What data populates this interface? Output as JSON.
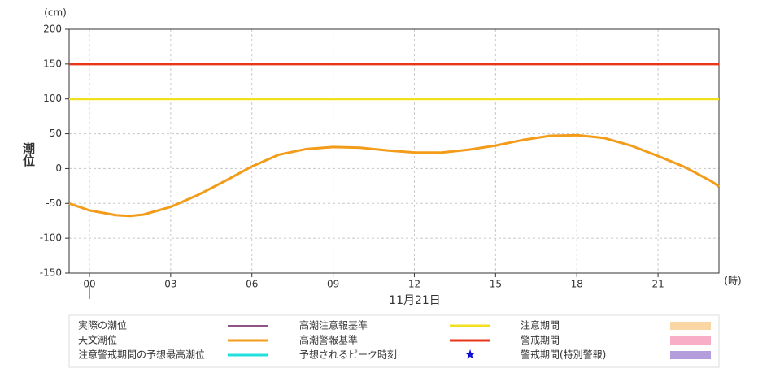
{
  "chart_data": {
    "type": "line",
    "y_unit": "(cm)",
    "ylabel": "潮位",
    "x_unit": "(時)",
    "date_label": "11月21日",
    "xlim": [
      -0.75,
      23.25
    ],
    "xticks": [
      {
        "value": 0,
        "label": "00"
      },
      {
        "value": 3,
        "label": "03"
      },
      {
        "value": 6,
        "label": "06"
      },
      {
        "value": 9,
        "label": "09"
      },
      {
        "value": 12,
        "label": "12"
      },
      {
        "value": 15,
        "label": "15"
      },
      {
        "value": 18,
        "label": "18"
      },
      {
        "value": 21,
        "label": "21"
      }
    ],
    "ylim": [
      -150,
      200
    ],
    "yticks": [
      -150,
      -100,
      -50,
      0,
      50,
      100,
      150,
      200
    ],
    "grid": true,
    "x": [
      -0.75,
      0,
      1,
      1.5,
      2,
      3,
      4,
      5,
      6,
      7,
      8,
      9,
      10,
      11,
      12,
      13,
      14,
      15,
      16,
      17,
      18,
      19,
      20,
      21,
      22,
      23,
      23.25
    ],
    "series": [
      {
        "name": "実際の潮位",
        "color": "#6a1b5a",
        "style": "line"
      },
      {
        "name": "天文潮位",
        "color": "#f39c1a",
        "style": "line",
        "values": [
          -50,
          -60,
          -67,
          -68,
          -66,
          -55,
          -38,
          -18,
          3,
          20,
          28,
          31,
          30,
          26,
          23,
          23,
          27,
          33,
          41,
          47,
          48,
          44,
          33,
          18,
          2,
          -19,
          -26
        ]
      },
      {
        "name": "注意警戒期間の予想最高潮位",
        "color": "#22e0e0",
        "style": "line"
      },
      {
        "name": "高潮注意報基準",
        "color": "#f0e020",
        "style": "line",
        "value": 100
      },
      {
        "name": "高潮警報基準",
        "color": "#e8361a",
        "style": "line",
        "value": 150
      },
      {
        "name": "予想されるピーク時刻",
        "color": "#1010d0",
        "style": "star"
      },
      {
        "name": "注意期間",
        "color": "#fad6a5",
        "style": "band"
      },
      {
        "name": "警戒期間",
        "color": "#f9aec8",
        "style": "band"
      },
      {
        "name": "警戒期間(特別警報)",
        "color": "#b39ddb",
        "style": "band"
      }
    ]
  }
}
